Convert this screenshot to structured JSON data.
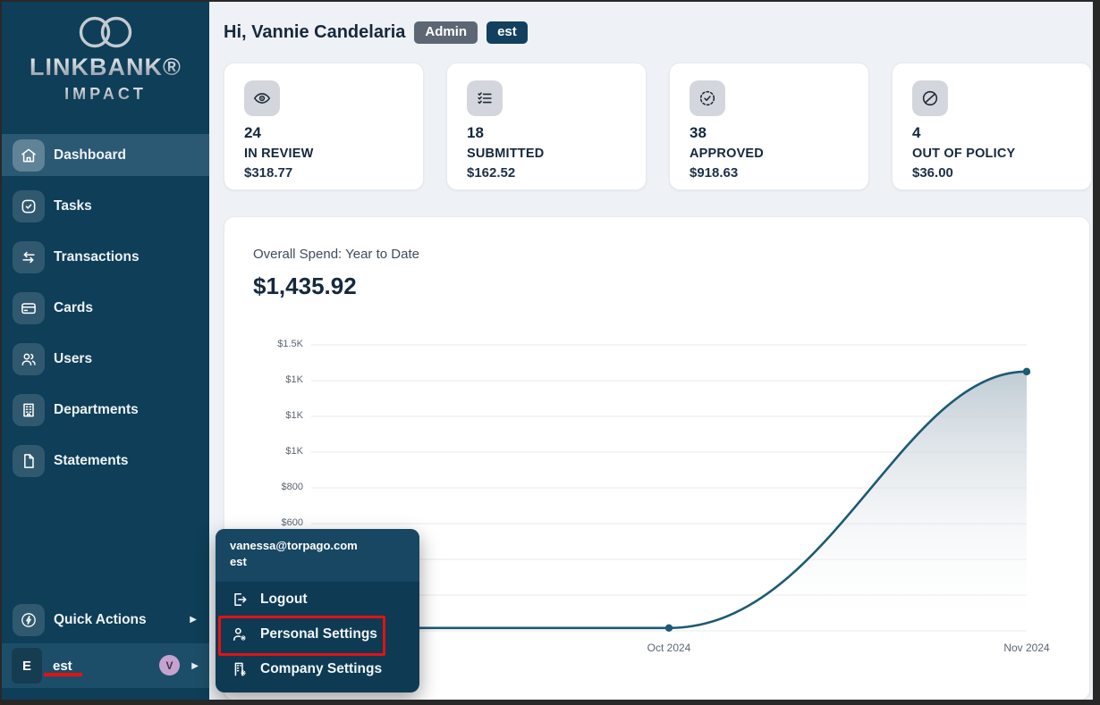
{
  "sidebar": {
    "brand": {
      "name": "LINKBANK®",
      "sub": "IMPACT"
    },
    "items": [
      {
        "label": "Dashboard",
        "active": true
      },
      {
        "label": "Tasks"
      },
      {
        "label": "Transactions"
      },
      {
        "label": "Cards"
      },
      {
        "label": "Users"
      },
      {
        "label": "Departments"
      },
      {
        "label": "Statements"
      }
    ],
    "quick_actions_label": "Quick Actions",
    "user_row": {
      "initial": "E",
      "label": "est",
      "avatar_initial": "V"
    }
  },
  "header": {
    "greeting": "Hi, Vannie Candelaria",
    "badges": [
      {
        "label": "Admin",
        "color": "#5d6673"
      },
      {
        "label": "est",
        "color": "#12405e"
      }
    ]
  },
  "stats": [
    {
      "icon": "eye",
      "count": "24",
      "label": "IN REVIEW",
      "amount": "$318.77"
    },
    {
      "icon": "checklist",
      "count": "18",
      "label": "SUBMITTED",
      "amount": "$162.52"
    },
    {
      "icon": "check-circle-dashed",
      "count": "38",
      "label": "APPROVED",
      "amount": "$918.63"
    },
    {
      "icon": "slash-circle",
      "count": "4",
      "label": "OUT OF POLICY",
      "amount": "$36.00"
    }
  ],
  "chart_data": {
    "type": "area",
    "title": "Overall Spend: Year to Date",
    "total_label": "$1,435.92",
    "x": [
      "",
      "Oct 2024",
      "Nov 2024"
    ],
    "values": [
      15,
      15,
      1360
    ],
    "ylim": [
      0,
      1500
    ],
    "y_tick_labels_top_to_bottom": [
      "$1.5K",
      "$1K",
      "$1K",
      "$1K",
      "$800",
      "$600",
      "",
      "",
      ""
    ],
    "grid": true,
    "legend": "none",
    "line_color": "#1d5a73",
    "fill_top_color": "#bdc9d2"
  },
  "popup": {
    "email": "vanessa@torpago.com",
    "org": "est",
    "items": [
      {
        "label": "Logout"
      },
      {
        "label": "Personal Settings",
        "annotated": true
      },
      {
        "label": "Company Settings"
      }
    ]
  },
  "annotation_color": "#e31212"
}
